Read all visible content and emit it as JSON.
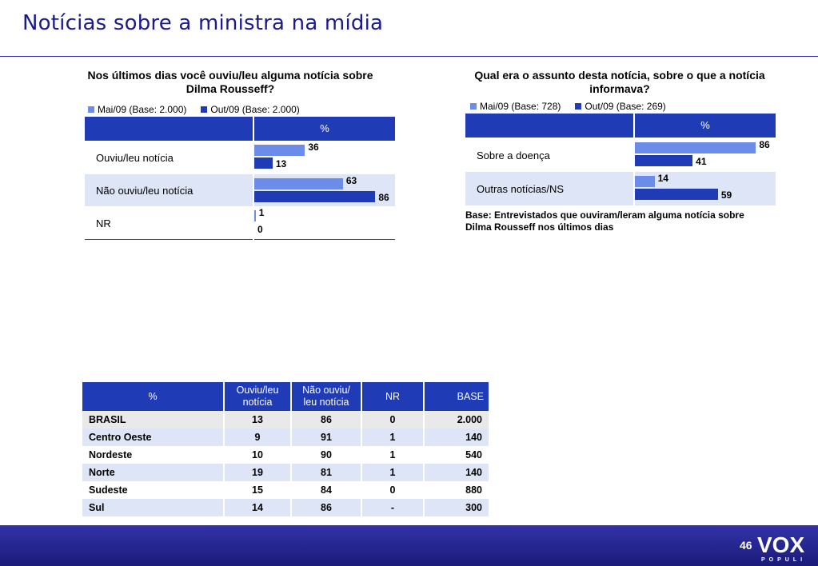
{
  "page": {
    "title": "Notícias sobre a ministra na mídia",
    "page_number": "46"
  },
  "logo": {
    "word": "VOX",
    "sub": "POPULI"
  },
  "colors": {
    "mai": "#6b8ce8",
    "out": "#1f3bb5",
    "header": "#1f3bb5"
  },
  "chart_data": [
    {
      "type": "bar",
      "title": "Nos últimos dias você ouviu/leu alguma notícia sobre Dilma Rousseff?",
      "column_header": "%",
      "categories": [
        "Ouviu/leu notícia",
        "Não ouviu/leu notícia",
        "NR"
      ],
      "series": [
        {
          "name": "Mai/09 (Base: 2.000)",
          "values": [
            36,
            63,
            1
          ]
        },
        {
          "name": "Out/09 (Base: 2.000)",
          "values": [
            13,
            86,
            0
          ]
        }
      ],
      "xlim": [
        0,
        100
      ],
      "legend": "top"
    },
    {
      "type": "bar",
      "title": "Qual era o assunto desta notícia, sobre o que a notícia informava?",
      "column_header": "%",
      "categories": [
        "Sobre a doença",
        "Outras notícias/NS"
      ],
      "series": [
        {
          "name": "Mai/09 (Base: 728)",
          "values": [
            86,
            14
          ]
        },
        {
          "name": "Out/09 (Base: 269)",
          "values": [
            41,
            59
          ]
        }
      ],
      "xlim": [
        0,
        100
      ],
      "legend": "top",
      "note": "Base: Entrevistados que ouviram/leram alguma notícia sobre Dilma Rousseff nos últimos dias"
    }
  ],
  "region_table": {
    "headers": [
      "%",
      "Ouviu/leu notícia",
      "Não ouviu/ leu notícia",
      "NR",
      "BASE"
    ],
    "rows": [
      [
        "BRASIL",
        "13",
        "86",
        "0",
        "2.000"
      ],
      [
        "Centro Oeste",
        "9",
        "91",
        "1",
        "140"
      ],
      [
        "Nordeste",
        "10",
        "90",
        "1",
        "540"
      ],
      [
        "Norte",
        "19",
        "81",
        "1",
        "140"
      ],
      [
        "Sudeste",
        "15",
        "84",
        "0",
        "880"
      ],
      [
        "Sul",
        "14",
        "86",
        "-",
        "300"
      ]
    ]
  }
}
